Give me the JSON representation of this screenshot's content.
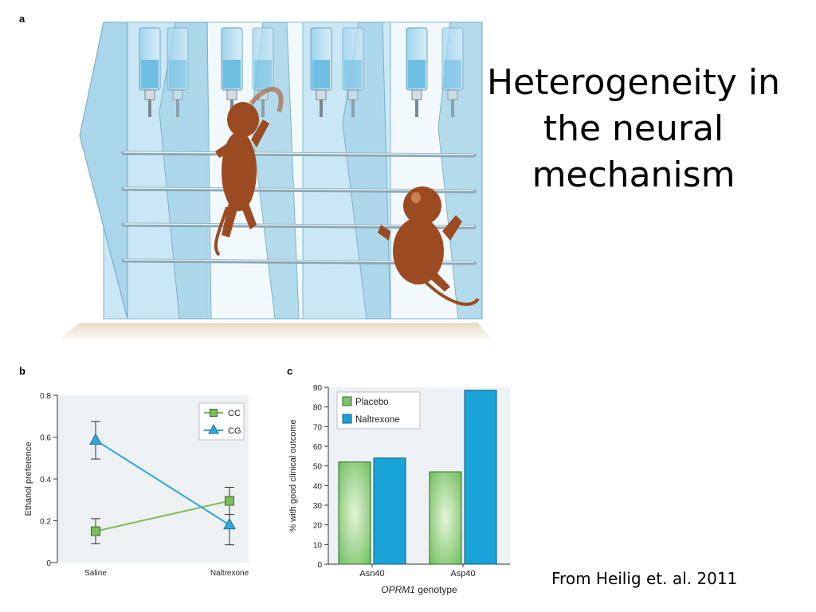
{
  "panels": {
    "a": "a",
    "b": "b",
    "c": "c"
  },
  "slide": {
    "title": "Heterogeneity in the neural mechanism",
    "citation": "From Heilig et. al. 2011"
  },
  "colors": {
    "cc": "#7dbd5a",
    "cg": "#2fa7d8",
    "placebo": "#7dc56d",
    "naltrexone": "#1aa3d8",
    "cage": "#a9d6ea",
    "monkey": "#9c4a22"
  },
  "chart_data": [
    {
      "type": "line",
      "panel": "b",
      "categories": [
        "Saline",
        "Naltrexone"
      ],
      "ylabel": "Ethanol preference",
      "ylim": [
        0,
        0.8
      ],
      "yticks": [
        "0",
        "0.2",
        "0.4",
        "0.6",
        "0.8"
      ],
      "legend_position": "top-right",
      "series": [
        {
          "name": "CC",
          "values": [
            0.15,
            0.295
          ],
          "error": [
            0.06,
            0.065
          ],
          "marker": "square"
        },
        {
          "name": "CG",
          "values": [
            0.585,
            0.18
          ],
          "error": [
            0.09,
            0.095
          ],
          "marker": "triangle"
        }
      ]
    },
    {
      "type": "bar",
      "panel": "c",
      "categories": [
        "Asn40",
        "Asp40"
      ],
      "xlabel_italic": "OPRM1",
      "xlabel_rest": " genotype",
      "ylabel": "% with good clinical outcome",
      "ylim": [
        0,
        90
      ],
      "yticks": [
        "0",
        "10",
        "20",
        "30",
        "40",
        "50",
        "60",
        "70",
        "80",
        "90"
      ],
      "legend_position": "top-left",
      "series": [
        {
          "name": "Placebo",
          "values": [
            52,
            47
          ]
        },
        {
          "name": "Naltrexone",
          "values": [
            54,
            88.5
          ]
        }
      ]
    }
  ]
}
